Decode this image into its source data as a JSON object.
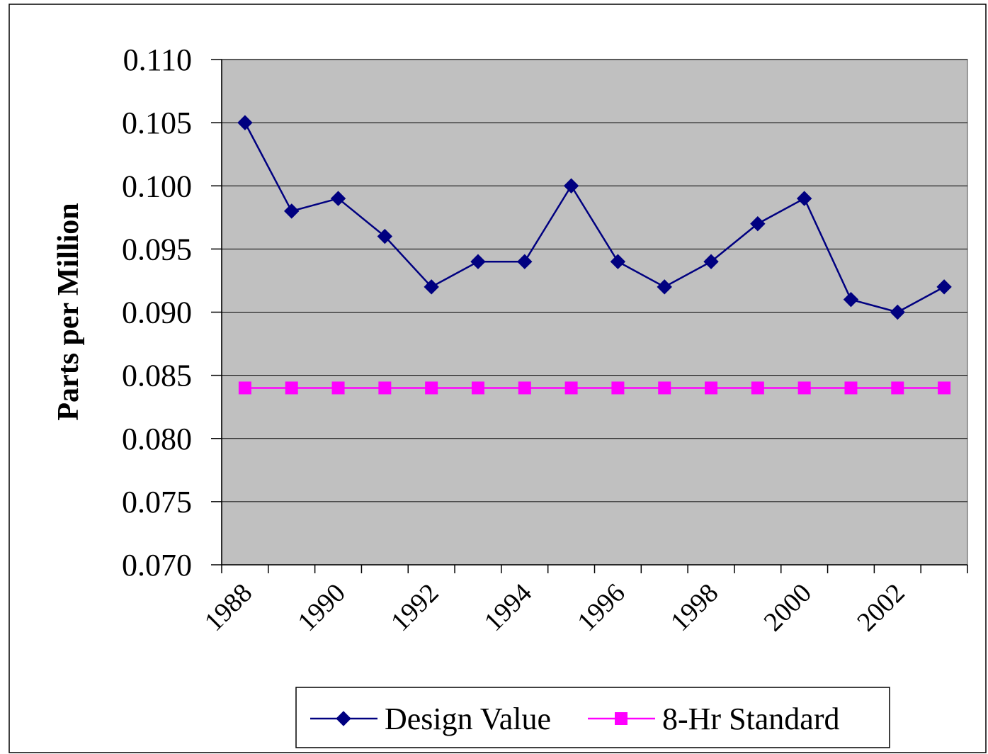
{
  "chart_data": {
    "type": "line",
    "y_label": "Parts per Million",
    "categories": [
      "1988",
      null,
      "1990",
      null,
      "1992",
      null,
      "1994",
      null,
      "1996",
      null,
      "1998",
      null,
      "2000",
      null,
      "2002",
      null
    ],
    "series": [
      {
        "name": "Design Value",
        "color": "#000080",
        "marker": "diamond",
        "values": [
          0.105,
          0.098,
          0.099,
          0.096,
          0.092,
          0.094,
          0.094,
          0.1,
          0.094,
          0.092,
          0.094,
          0.097,
          0.099,
          0.091,
          0.09,
          0.092
        ]
      },
      {
        "name": "8-Hr Standard",
        "color": "#FF00FF",
        "marker": "square",
        "values": [
          0.084,
          0.084,
          0.084,
          0.084,
          0.084,
          0.084,
          0.084,
          0.084,
          0.084,
          0.084,
          0.084,
          0.084,
          0.084,
          0.084,
          0.084,
          0.084
        ]
      }
    ],
    "ylim": [
      0.07,
      0.11
    ],
    "yticks": [
      {
        "value": 0.07,
        "label": "0.070"
      },
      0.075,
      {
        "value": 0.08,
        "label": "0.080"
      },
      0.085,
      {
        "value": 0.09,
        "label": "0.090"
      },
      0.095,
      {
        "value": 0.1,
        "label": "0.100"
      },
      0.105,
      {
        "value": 0.11,
        "label": "0.110"
      }
    ],
    "grid": true,
    "legend": "bottom",
    "plot_background": "#c0c0c0"
  }
}
